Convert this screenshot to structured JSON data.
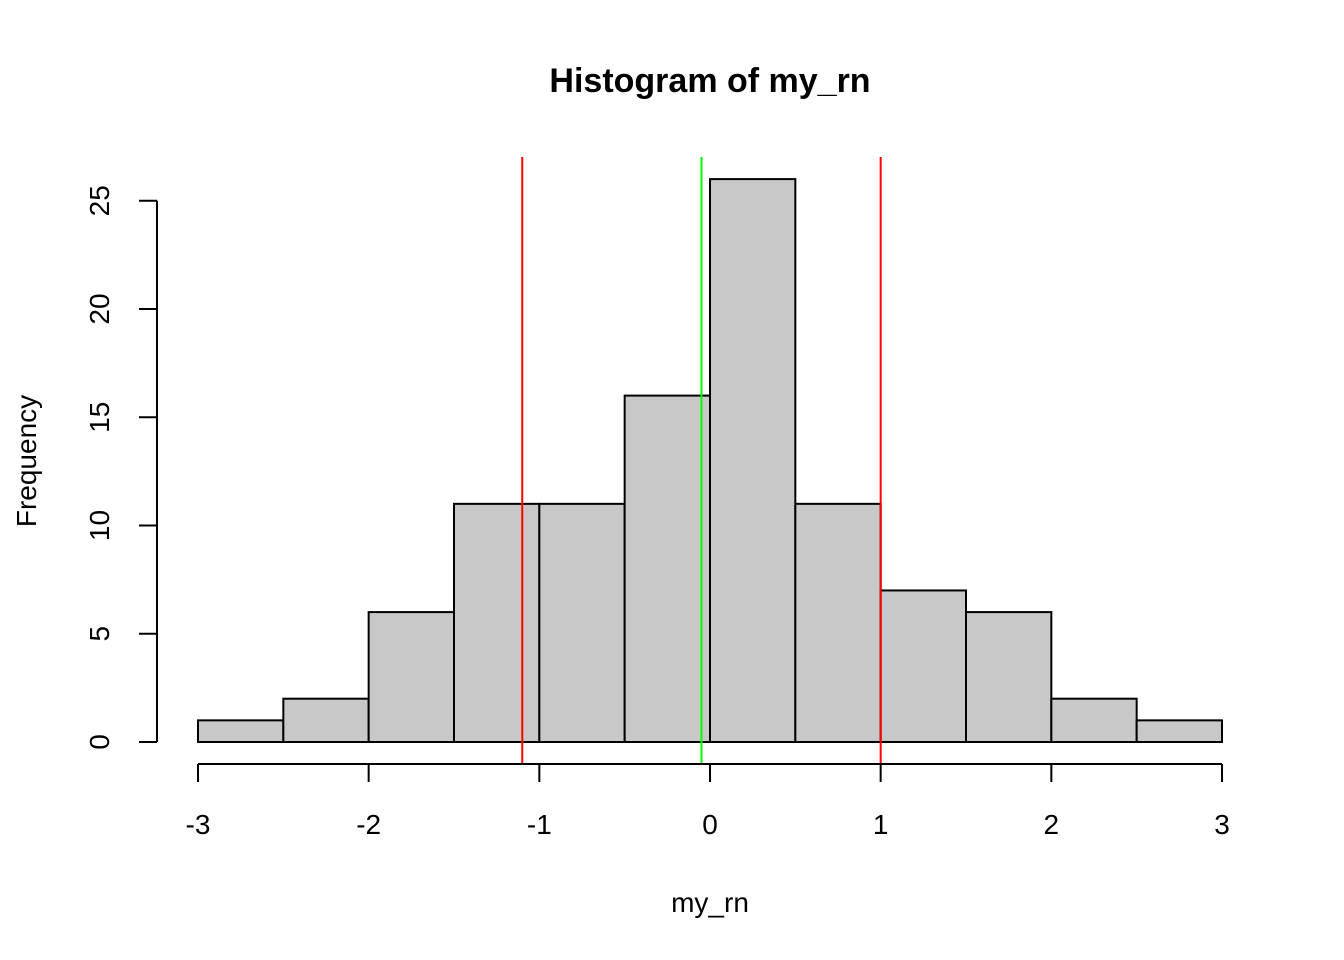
{
  "chart_data": {
    "type": "bar",
    "subtype": "histogram",
    "title": "Histogram of my_rn",
    "xlabel": "my_rn",
    "ylabel": "Frequency",
    "bin_edges": [
      -3,
      -2.5,
      -2,
      -1.5,
      -1,
      -0.5,
      0,
      0.5,
      1,
      1.5,
      2,
      2.5,
      3
    ],
    "values": [
      1,
      2,
      6,
      11,
      11,
      16,
      26,
      11,
      7,
      6,
      2,
      1
    ],
    "xlim": [
      -3,
      3
    ],
    "ylim": [
      0,
      26
    ],
    "x_ticks": [
      -3,
      -2,
      -1,
      0,
      1,
      2,
      3
    ],
    "x_tick_labels": [
      "-3",
      "-2",
      "-1",
      "0",
      "1",
      "2",
      "3"
    ],
    "y_ticks": [
      0,
      5,
      10,
      15,
      20,
      25
    ],
    "y_tick_labels": [
      "0",
      "5",
      "10",
      "15",
      "20",
      "25"
    ],
    "bar_fill": "#c8c8c8",
    "bar_stroke": "#000000",
    "grid": false,
    "vertical_lines": [
      {
        "name": "lower-bound-line",
        "x": -1.1,
        "color": "#ff0000"
      },
      {
        "name": "mean-line",
        "x": -0.05,
        "color": "#00ff00"
      },
      {
        "name": "upper-bound-line",
        "x": 1.0,
        "color": "#ff0000"
      }
    ]
  }
}
